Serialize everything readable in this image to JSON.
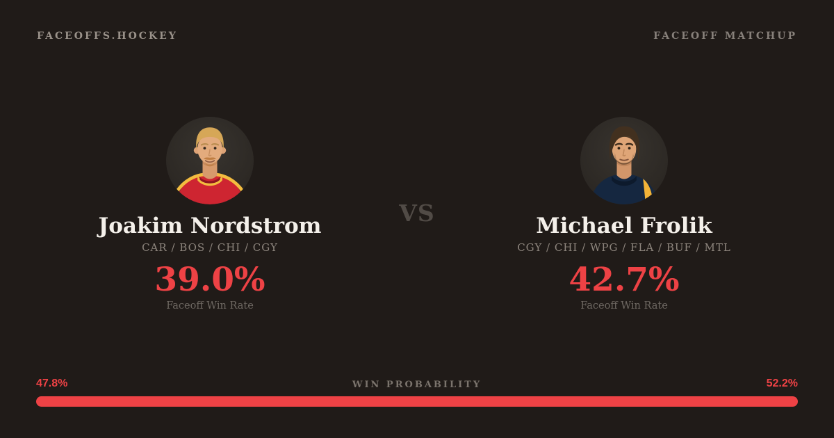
{
  "header": {
    "brand": "FACEOFFS.HOCKEY",
    "page_label": "FACEOFF MATCHUP"
  },
  "matchup": {
    "vs_label": "VS",
    "players": [
      {
        "name": "Joakim Nordstrom",
        "teams": "CAR / BOS / CHI / CGY",
        "win_rate": "39.0%",
        "win_rate_label": "Faceoff Win Rate",
        "avatar": "joakim-nordstrom-headshot"
      },
      {
        "name": "Michael Frolik",
        "teams": "CGY / CHI / WPG / FLA / BUF / MTL",
        "win_rate": "42.7%",
        "win_rate_label": "Faceoff Win Rate",
        "avatar": "michael-frolik-headshot"
      }
    ]
  },
  "win_probability": {
    "label": "WIN PROBABILITY",
    "left_pct": "47.8%",
    "right_pct": "52.2%",
    "left_value": 47.8,
    "right_value": 52.2
  },
  "colors": {
    "background": "#201b18",
    "accent_red": "#ee4245",
    "text_primary": "#f4f0ea",
    "text_muted": "#8d857d"
  }
}
